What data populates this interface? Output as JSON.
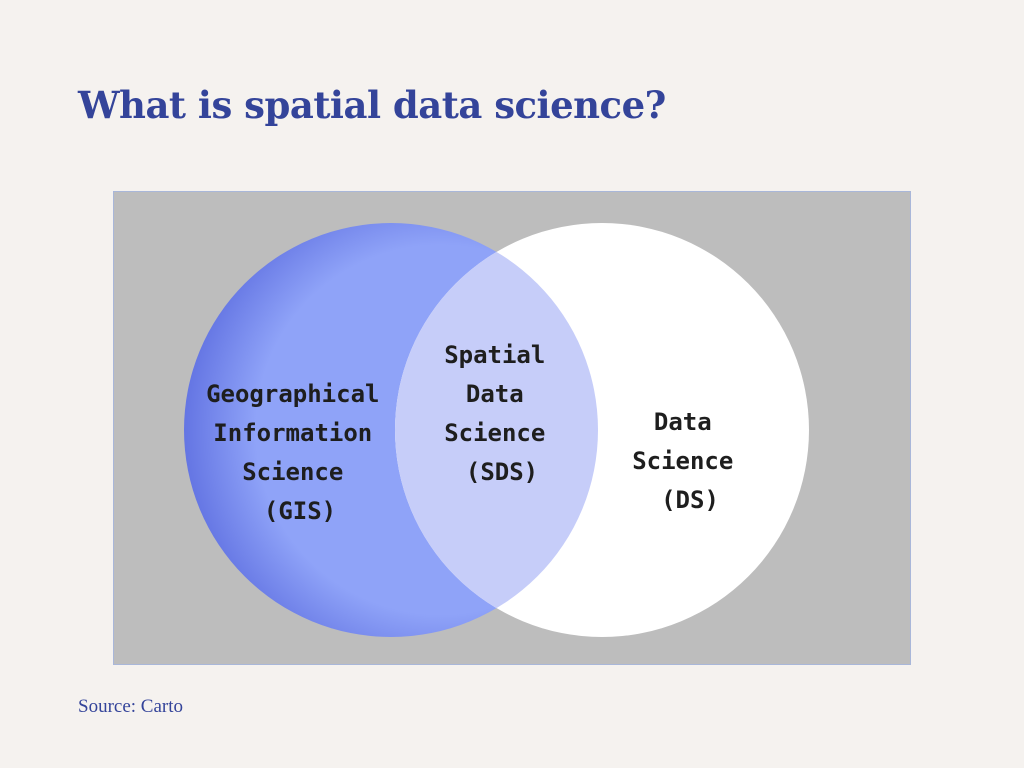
{
  "slide": {
    "title": "What is spatial data science?",
    "source": "Source: Carto"
  },
  "venn": {
    "sets": [
      {
        "key": "gis",
        "lines": [
          "Geographical",
          "Information",
          "Science",
          "(GIS)"
        ],
        "color": "#8fa3f8",
        "edge_color": "#6475e3"
      },
      {
        "key": "ds",
        "lines": [
          "Data",
          "Science",
          "(DS)"
        ],
        "color": "#ffffff"
      }
    ],
    "intersection": {
      "key": "sds",
      "lines": [
        "Spatial",
        "Data",
        "Science",
        "(SDS)"
      ],
      "color": "#c6cdf9"
    },
    "background_color": "#bdbdbd"
  }
}
